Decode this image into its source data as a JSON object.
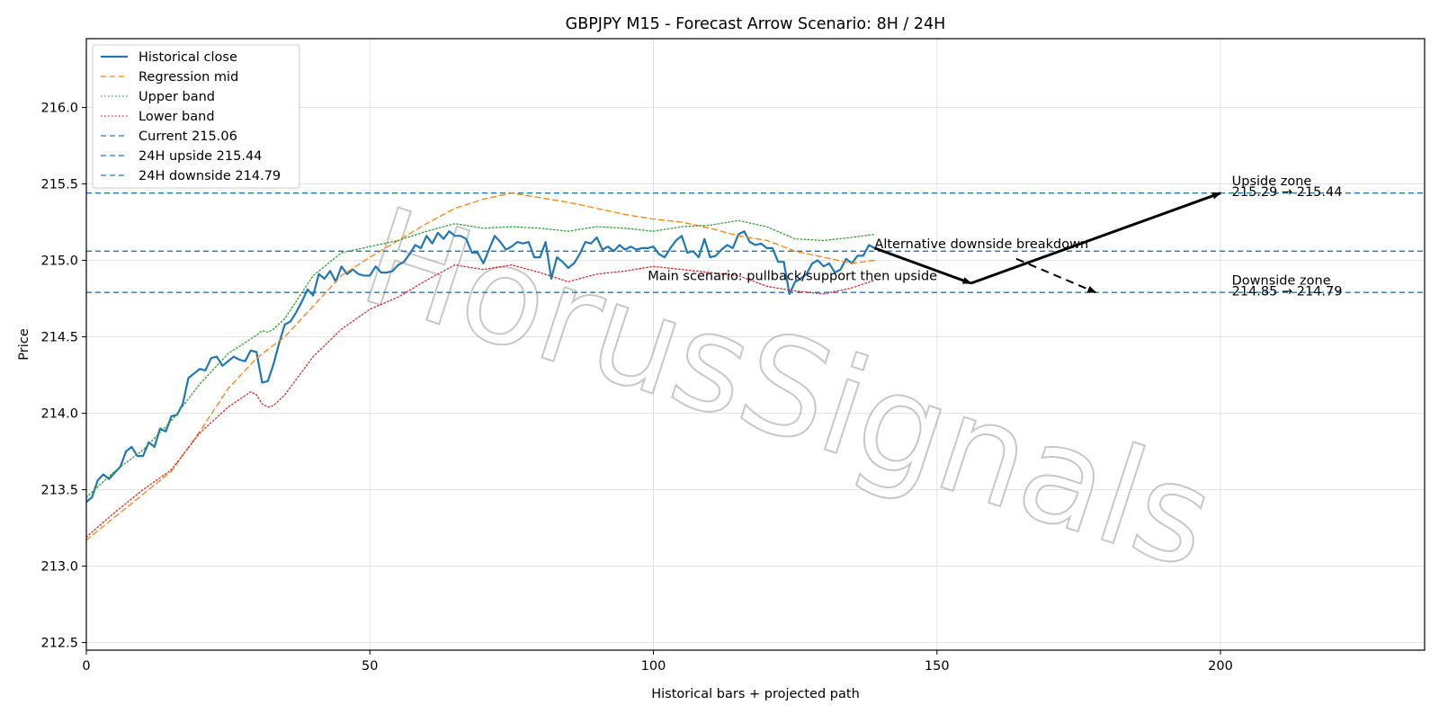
{
  "chart_data": {
    "type": "line",
    "title": "GBPJPY M15 - Forecast Arrow Scenario: 8H / 24H",
    "xlabel": "Historical bars + projected path",
    "ylabel": "Price",
    "xlim": [
      0,
      236
    ],
    "ylim": [
      212.45,
      216.45
    ],
    "xticks": [
      0,
      50,
      100,
      150,
      200
    ],
    "xtick_labels": [
      "0",
      "50",
      "100",
      "150",
      "200"
    ],
    "yticks": [
      212.5,
      213.0,
      213.5,
      214.0,
      214.5,
      215.0,
      215.5,
      216.0
    ],
    "ytick_labels": [
      "212.5",
      "213.0",
      "213.5",
      "214.0",
      "214.5",
      "215.0",
      "215.5",
      "216.0"
    ],
    "grid": true,
    "legend_position": "top-left",
    "watermark": "HorusSignals",
    "colors": {
      "historical": "#1f77b4",
      "regression": "#ff7f0e",
      "upper": "#2ca02c",
      "lower": "#d62728",
      "hlines": "#1f77b4",
      "arrows": "#000000"
    },
    "series": [
      {
        "name": "Historical close",
        "style": "solid",
        "x": [
          0,
          1,
          2,
          3,
          4,
          5,
          6,
          7,
          8,
          9,
          10,
          11,
          12,
          13,
          14,
          15,
          16,
          17,
          18,
          19,
          20,
          21,
          22,
          23,
          24,
          25,
          26,
          27,
          28,
          29,
          30,
          31,
          32,
          33,
          34,
          35,
          36,
          37,
          38,
          39,
          40,
          41,
          42,
          43,
          44,
          45,
          46,
          47,
          48,
          49,
          50,
          51,
          52,
          53,
          54,
          55,
          56,
          57,
          58,
          59,
          60,
          61,
          62,
          63,
          64,
          65,
          66,
          67,
          68,
          69,
          70,
          71,
          72,
          73,
          74,
          75,
          76,
          77,
          78,
          79,
          80,
          81,
          82,
          83,
          84,
          85,
          86,
          87,
          88,
          89,
          90,
          91,
          92,
          93,
          94,
          95,
          96,
          97,
          98,
          99,
          100,
          101,
          102,
          103,
          104,
          105,
          106,
          107,
          108,
          109,
          110,
          111,
          112,
          113,
          114,
          115,
          116,
          117,
          118,
          119,
          120,
          121,
          122,
          123,
          124,
          125,
          126,
          127,
          128,
          129,
          130,
          131,
          132,
          133,
          134,
          135,
          136,
          137,
          138,
          139
        ],
        "y": [
          213.42,
          213.45,
          213.56,
          213.6,
          213.57,
          213.61,
          213.65,
          213.75,
          213.78,
          213.72,
          213.72,
          213.81,
          213.78,
          213.9,
          213.88,
          213.98,
          213.99,
          214.06,
          214.23,
          214.26,
          214.29,
          214.28,
          214.36,
          214.37,
          214.31,
          214.34,
          214.37,
          214.35,
          214.34,
          214.41,
          214.4,
          214.2,
          214.21,
          214.32,
          214.46,
          214.58,
          214.6,
          214.66,
          214.73,
          214.81,
          214.77,
          214.91,
          214.88,
          214.93,
          214.86,
          214.96,
          214.91,
          214.94,
          214.91,
          214.9,
          214.9,
          214.96,
          214.92,
          214.92,
          214.93,
          214.97,
          214.99,
          215.04,
          215.1,
          215.08,
          215.16,
          215.11,
          215.18,
          215.14,
          215.19,
          215.16,
          215.16,
          215.14,
          215.05,
          215.05,
          214.98,
          215.07,
          215.16,
          215.12,
          215.07,
          215.09,
          215.12,
          215.11,
          215.12,
          215.02,
          215.02,
          215.12,
          214.88,
          215.02,
          214.99,
          214.95,
          214.98,
          215.04,
          215.12,
          215.11,
          215.15,
          215.07,
          215.09,
          215.06,
          215.1,
          215.07,
          215.09,
          215.07,
          215.08,
          215.08,
          215.09,
          215.04,
          215.02,
          215.08,
          215.13,
          215.16,
          215.05,
          215.06,
          215.02,
          215.14,
          215.02,
          215.03,
          215.07,
          215.1,
          215.08,
          215.17,
          215.19,
          215.12,
          215.1,
          215.11,
          215.08,
          215.08,
          214.99,
          214.99,
          214.78,
          214.86,
          214.88,
          214.91,
          214.98,
          215.0,
          214.96,
          214.98,
          214.92,
          214.94,
          215.01,
          214.98,
          215.03,
          215.03,
          215.1,
          215.08
        ]
      },
      {
        "name": "Regression mid",
        "style": "dashed",
        "x": [
          0,
          5,
          10,
          15,
          20,
          25,
          30,
          35,
          40,
          45,
          50,
          55,
          60,
          65,
          70,
          75,
          80,
          85,
          90,
          95,
          100,
          105,
          110,
          115,
          120,
          125,
          130,
          135,
          139
        ],
        "y": [
          213.17,
          213.32,
          213.47,
          213.62,
          213.88,
          214.16,
          214.36,
          214.5,
          214.7,
          214.9,
          215.02,
          215.13,
          215.24,
          215.34,
          215.4,
          215.44,
          215.41,
          215.38,
          215.34,
          215.3,
          215.27,
          215.25,
          215.21,
          215.16,
          215.13,
          215.06,
          215.02,
          214.98,
          215.0
        ]
      },
      {
        "name": "Upper band",
        "style": "dotted",
        "x": [
          0,
          5,
          10,
          15,
          20,
          25,
          30,
          31,
          32,
          33,
          35,
          40,
          45,
          50,
          55,
          60,
          65,
          70,
          75,
          80,
          85,
          90,
          95,
          100,
          105,
          110,
          115,
          120,
          125,
          130,
          135,
          139
        ],
        "y": [
          213.45,
          213.62,
          213.76,
          213.95,
          214.19,
          214.39,
          214.51,
          214.54,
          214.53,
          214.55,
          214.62,
          214.9,
          215.05,
          215.09,
          215.13,
          215.19,
          215.24,
          215.21,
          215.22,
          215.21,
          215.19,
          215.22,
          215.21,
          215.19,
          215.22,
          215.23,
          215.26,
          215.22,
          215.14,
          215.13,
          215.15,
          215.17
        ]
      },
      {
        "name": "Lower band",
        "style": "dotted",
        "x": [
          0,
          5,
          10,
          15,
          20,
          25,
          29,
          30,
          31,
          32,
          33,
          35,
          40,
          45,
          50,
          55,
          60,
          65,
          70,
          75,
          80,
          85,
          90,
          95,
          100,
          105,
          110,
          115,
          120,
          125,
          130,
          135,
          139
        ],
        "y": [
          213.19,
          213.35,
          213.5,
          213.63,
          213.87,
          214.04,
          214.14,
          214.12,
          214.06,
          214.04,
          214.05,
          214.12,
          214.37,
          214.55,
          214.68,
          214.76,
          214.87,
          214.97,
          214.94,
          214.97,
          214.92,
          214.86,
          214.91,
          214.93,
          214.96,
          214.94,
          214.92,
          214.9,
          214.83,
          214.8,
          214.78,
          214.82,
          214.87
        ]
      }
    ],
    "hlines": [
      {
        "name": "Current 215.06",
        "y": 215.06,
        "style": "dashed"
      },
      {
        "name": "24H upside 215.44",
        "y": 215.44,
        "style": "dashed"
      },
      {
        "name": "24H downside 214.79",
        "y": 214.79,
        "style": "dashed"
      }
    ],
    "arrows": [
      {
        "from": [
          139,
          215.08
        ],
        "to": [
          156,
          214.85
        ],
        "style": "solid"
      },
      {
        "from": [
          156,
          214.85
        ],
        "to": [
          200,
          215.44
        ],
        "style": "solid"
      },
      {
        "from": [
          164,
          215.01
        ],
        "to": [
          178,
          214.79
        ],
        "style": "dashed"
      }
    ],
    "annotations": [
      {
        "id": "main",
        "text": "Main scenario: pullback/support then upside",
        "x": 99,
        "y": 214.87
      },
      {
        "id": "alt",
        "text": "Alternative downside breakdown",
        "x": 139,
        "y": 215.08
      },
      {
        "id": "up1",
        "text": "Upside zone",
        "x": 202,
        "y": 215.49
      },
      {
        "id": "up2",
        "text": "215.29 → 215.44",
        "x": 202,
        "y": 215.42
      },
      {
        "id": "down1",
        "text": "Downside zone",
        "x": 202,
        "y": 214.84
      },
      {
        "id": "down2",
        "text": "214.85 → 214.79",
        "x": 202,
        "y": 214.77
      }
    ]
  }
}
